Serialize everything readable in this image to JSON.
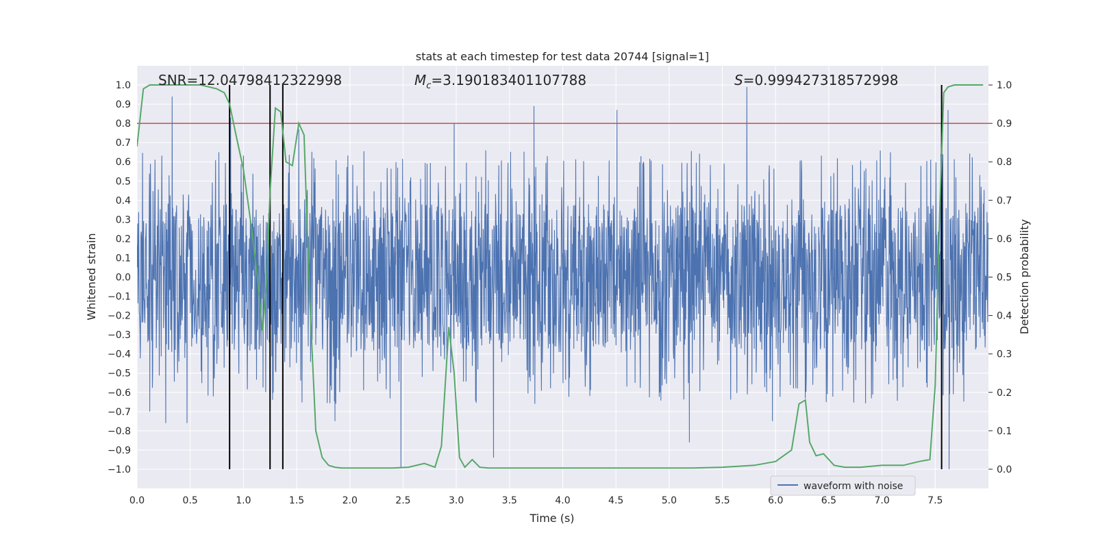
{
  "chart_data": {
    "type": "line",
    "title": "stats at each timestep for test data 20744 [signal=1]",
    "xlabel": "Time (s)",
    "ylabel_left": "Whitened strain",
    "ylabel_right": "Detection probability",
    "xlim": [
      0,
      8
    ],
    "ylim_left": [
      -1.1,
      1.1
    ],
    "ylim_right": [
      -0.05,
      1.05
    ],
    "x_ticks": [
      "0.0",
      "0.5",
      "1.0",
      "1.5",
      "2.0",
      "2.5",
      "3.0",
      "3.5",
      "4.0",
      "4.5",
      "5.0",
      "5.5",
      "6.0",
      "6.5",
      "7.0",
      "7.5"
    ],
    "y_ticks_left": [
      "1.0",
      "0.9",
      "0.8",
      "0.7",
      "0.6",
      "0.5",
      "0.4",
      "0.3",
      "0.2",
      "0.1",
      "0.0",
      "-0.1",
      "-0.2",
      "-0.3",
      "-0.4",
      "-0.5",
      "-0.6",
      "-0.7",
      "-0.8",
      "-0.9",
      "-1.0"
    ],
    "y_ticks_right": [
      "1.0",
      "0.9",
      "0.8",
      "0.7",
      "0.6",
      "0.5",
      "0.4",
      "0.3",
      "0.2",
      "0.1",
      "0.0"
    ],
    "grid": true,
    "annotations": {
      "snr": "SNR=12.04798412322998",
      "mc_symbol": "M",
      "mc_sub": "c",
      "mc_value": "=3.190183401107788",
      "s_symbol": "S",
      "s_value": "=0.999427318572998"
    },
    "threshold_right": 0.9,
    "vertical_lines_x": [
      0.87,
      1.25,
      1.37,
      7.56
    ],
    "legend": {
      "label": "waveform with noise",
      "position": "lower-right"
    },
    "colors": {
      "strain": "#4c72b0",
      "probability": "#55a868",
      "threshold": "#c44e52",
      "event_lines": "#000000",
      "plot_bg": "#eaeaf2",
      "grid": "#ffffff"
    },
    "series": [
      {
        "name": "waveform with noise",
        "axis": "left",
        "kind": "noise",
        "envelope": 0.38,
        "spikes": [
          {
            "x": 0.33,
            "y": 0.94
          },
          {
            "x": 0.88,
            "y": 0.83
          },
          {
            "x": 1.52,
            "y": 0.77
          },
          {
            "x": 2.98,
            "y": 0.8
          },
          {
            "x": 3.73,
            "y": 0.89
          },
          {
            "x": 4.51,
            "y": 0.87
          },
          {
            "x": 5.73,
            "y": 0.99
          },
          {
            "x": 7.62,
            "y": 0.87
          },
          {
            "x": 0.12,
            "y": -0.7
          },
          {
            "x": 0.27,
            "y": -0.76
          },
          {
            "x": 0.47,
            "y": -0.76
          },
          {
            "x": 2.48,
            "y": -0.99
          },
          {
            "x": 3.35,
            "y": -0.94
          },
          {
            "x": 5.19,
            "y": -0.86
          },
          {
            "x": 7.63,
            "y": -1.0
          },
          {
            "x": 1.86,
            "y": -0.75
          },
          {
            "x": 5.97,
            "y": -0.75
          },
          {
            "x": 7.56,
            "y": -0.79
          }
        ]
      },
      {
        "name": "",
        "axis": "right",
        "x": [
          0.0,
          0.06,
          0.12,
          0.2,
          0.4,
          0.6,
          0.75,
          0.82,
          0.87,
          0.93,
          1.0,
          1.08,
          1.13,
          1.18,
          1.22,
          1.25,
          1.3,
          1.35,
          1.4,
          1.46,
          1.52,
          1.57,
          1.62,
          1.68,
          1.74,
          1.8,
          1.86,
          1.92,
          2.0,
          2.2,
          2.4,
          2.55,
          2.7,
          2.8,
          2.86,
          2.93,
          2.98,
          3.03,
          3.08,
          3.15,
          3.22,
          3.3,
          3.5,
          3.8,
          4.0,
          4.3,
          4.6,
          4.9,
          5.2,
          5.5,
          5.8,
          6.0,
          6.15,
          6.22,
          6.28,
          6.32,
          6.38,
          6.45,
          6.55,
          6.65,
          6.8,
          7.0,
          7.2,
          7.35,
          7.45,
          7.5,
          7.54,
          7.58,
          7.62,
          7.68,
          7.75,
          7.85,
          7.95
        ],
        "y": [
          0.84,
          0.99,
          1.0,
          1.0,
          1.0,
          1.0,
          0.99,
          0.98,
          0.95,
          0.87,
          0.78,
          0.62,
          0.5,
          0.36,
          0.5,
          0.72,
          0.94,
          0.93,
          0.8,
          0.79,
          0.9,
          0.87,
          0.46,
          0.1,
          0.03,
          0.01,
          0.005,
          0.003,
          0.003,
          0.003,
          0.003,
          0.005,
          0.015,
          0.005,
          0.06,
          0.37,
          0.25,
          0.03,
          0.005,
          0.025,
          0.005,
          0.003,
          0.003,
          0.003,
          0.003,
          0.003,
          0.003,
          0.003,
          0.003,
          0.005,
          0.01,
          0.02,
          0.05,
          0.17,
          0.18,
          0.07,
          0.035,
          0.04,
          0.01,
          0.005,
          0.005,
          0.01,
          0.01,
          0.02,
          0.025,
          0.22,
          0.65,
          0.98,
          0.995,
          1.0,
          1.0,
          1.0,
          1.0
        ]
      }
    ]
  }
}
